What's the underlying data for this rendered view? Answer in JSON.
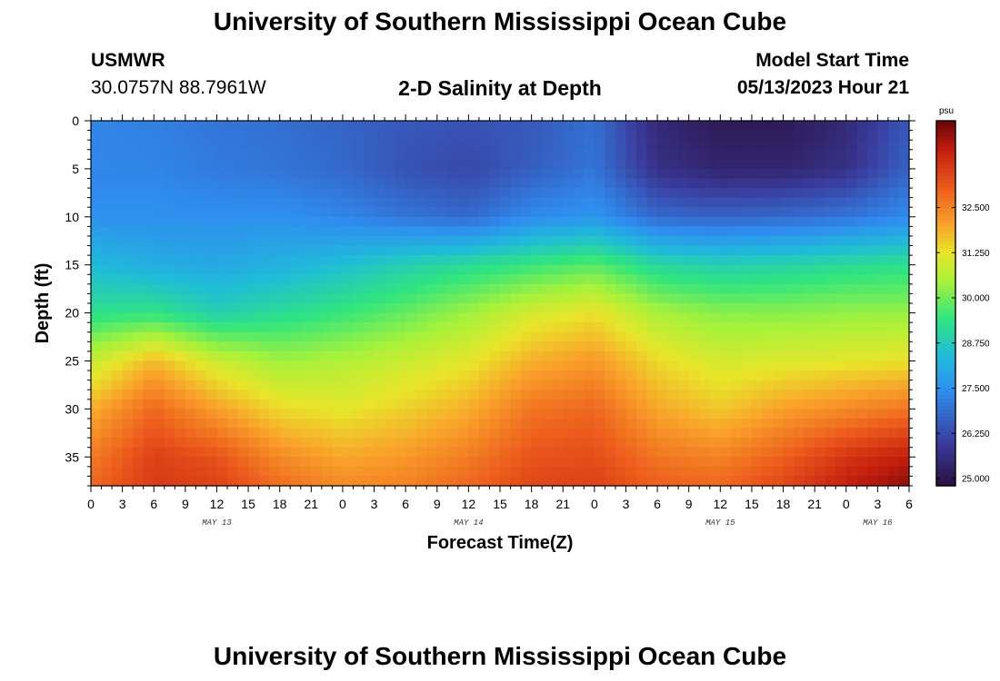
{
  "header": {
    "title": "University of Southern Mississippi Ocean Cube",
    "station_name": "USMWR",
    "station_coords": "30.0757N  88.7961W",
    "plot_title": "2-D Salinity at Depth",
    "start_label": "Model Start Time",
    "start_value": "05/13/2023 Hour 21"
  },
  "footer": {
    "title": "University of Southern Mississippi Ocean Cube"
  },
  "chart_data": {
    "type": "heatmap",
    "xlabel": "Forecast Time(Z)",
    "ylabel": "Depth (ft)",
    "x_unit": "hours since May 13 00Z",
    "x_range": [
      0,
      78
    ],
    "x_ticks": [
      0,
      3,
      6,
      9,
      12,
      15,
      18,
      21,
      24,
      27,
      30,
      33,
      36,
      39,
      42,
      45,
      48,
      51,
      54,
      57,
      60,
      63,
      66,
      69,
      72,
      75,
      78
    ],
    "x_tick_labels": [
      "0",
      "3",
      "6",
      "9",
      "12",
      "15",
      "18",
      "21",
      "0",
      "3",
      "6",
      "9",
      "12",
      "15",
      "18",
      "21",
      "0",
      "3",
      "6",
      "9",
      "12",
      "15",
      "18",
      "21",
      "0",
      "3",
      "6"
    ],
    "date_labels": [
      {
        "text": "MAY 13",
        "hour": 12
      },
      {
        "text": "MAY 14",
        "hour": 36
      },
      {
        "text": "MAY 15",
        "hour": 60
      },
      {
        "text": "MAY 16",
        "hour": 75
      }
    ],
    "y_range": [
      0,
      38
    ],
    "y_ticks": [
      0,
      5,
      10,
      15,
      20,
      25,
      30,
      35
    ],
    "y_inverted": true,
    "colorbar": {
      "unit": "psu",
      "range": [
        24.8,
        34.9
      ],
      "ticks": [
        25.0,
        26.25,
        27.5,
        28.75,
        30.0,
        31.25,
        32.5
      ],
      "tick_labels": [
        "25.000",
        "26.250",
        "27.500",
        "28.750",
        "30.000",
        "31.250",
        "32.500"
      ]
    },
    "colormap": [
      [
        0.0,
        "#2a0e3f"
      ],
      [
        0.12,
        "#3a3d9e"
      ],
      [
        0.26,
        "#2f8df0"
      ],
      [
        0.36,
        "#1fbcd8"
      ],
      [
        0.46,
        "#2fe57e"
      ],
      [
        0.56,
        "#a6f23a"
      ],
      [
        0.64,
        "#e8e52a"
      ],
      [
        0.72,
        "#f9a12a"
      ],
      [
        0.82,
        "#ec5a1c"
      ],
      [
        0.92,
        "#c41e0e"
      ],
      [
        1.0,
        "#6a0505"
      ]
    ],
    "depths_ft": [
      0,
      5,
      10,
      15,
      20,
      25,
      30,
      35,
      38
    ],
    "time_hours": [
      0,
      6,
      12,
      18,
      24,
      30,
      36,
      42,
      48,
      54,
      60,
      66,
      72,
      78
    ],
    "salinity_psu": [
      [
        27.3,
        27.2,
        27.0,
        26.9,
        26.7,
        26.5,
        26.4,
        26.5,
        26.9,
        25.5,
        25.1,
        25.1,
        25.5,
        26.5
      ],
      [
        27.3,
        27.3,
        27.1,
        27.0,
        26.8,
        26.4,
        26.2,
        26.6,
        27.0,
        25.7,
        25.4,
        25.4,
        25.7,
        26.7
      ],
      [
        27.5,
        27.5,
        27.5,
        27.5,
        27.3,
        27.0,
        26.8,
        27.4,
        27.6,
        26.8,
        26.7,
        26.8,
        27.0,
        27.4
      ],
      [
        28.4,
        28.1,
        28.0,
        28.2,
        28.5,
        28.9,
        29.2,
        29.5,
        29.8,
        29.1,
        28.9,
        29.0,
        29.2,
        29.3
      ],
      [
        29.3,
        29.4,
        28.9,
        29.2,
        29.5,
        29.9,
        30.4,
        31.0,
        31.3,
        30.5,
        30.2,
        30.2,
        30.3,
        30.3
      ],
      [
        30.8,
        31.8,
        30.9,
        30.4,
        30.6,
        30.9,
        31.2,
        31.9,
        32.2,
        31.4,
        31.0,
        31.1,
        31.2,
        31.3
      ],
      [
        31.9,
        32.9,
        32.1,
        31.4,
        31.2,
        31.5,
        31.9,
        32.7,
        32.9,
        32.0,
        31.6,
        32.1,
        32.4,
        32.7
      ],
      [
        32.6,
        33.5,
        33.2,
        32.4,
        32.0,
        32.2,
        32.6,
        33.2,
        33.3,
        32.7,
        32.5,
        33.0,
        33.7,
        34.1
      ],
      [
        32.9,
        33.6,
        33.5,
        32.8,
        32.4,
        32.5,
        32.9,
        33.4,
        33.5,
        33.0,
        32.9,
        33.4,
        34.1,
        34.6
      ]
    ]
  }
}
